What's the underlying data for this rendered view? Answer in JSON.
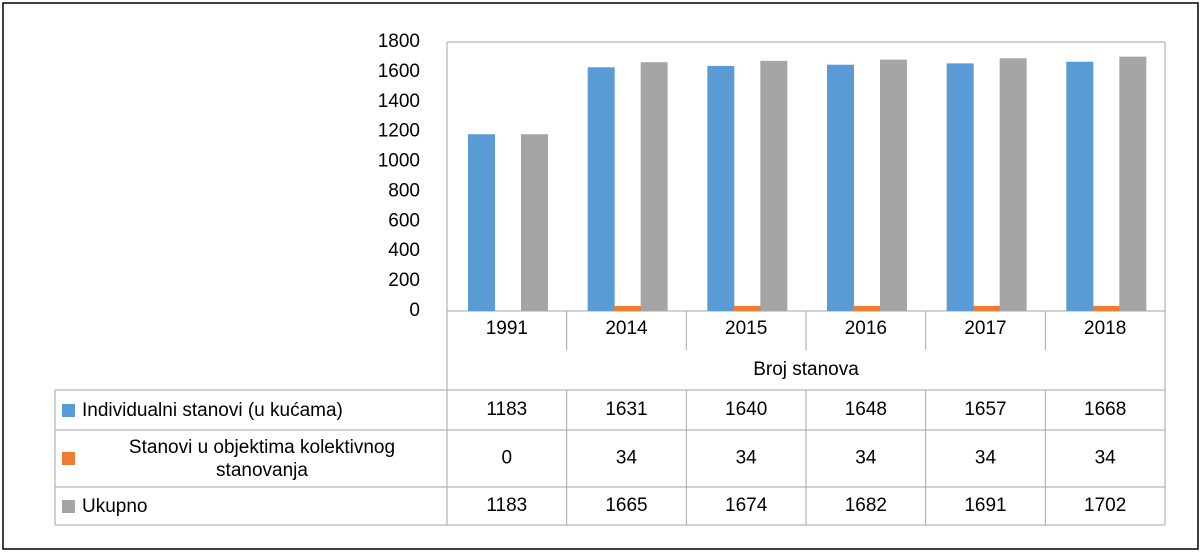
{
  "chart_data": {
    "type": "bar",
    "categories": [
      "1991",
      "2014",
      "2015",
      "2016",
      "2017",
      "2018"
    ],
    "x_axis_label": "Broj stanova",
    "series": [
      {
        "name": "Individualni stanovi (u kućama)",
        "color": "#5b9bd5",
        "values": [
          1183,
          1631,
          1640,
          1648,
          1657,
          1668
        ]
      },
      {
        "name": "Stanovi u objektima kolektivnog stanovanja",
        "color": "#ed7d31",
        "values": [
          0,
          34,
          34,
          34,
          34,
          34
        ]
      },
      {
        "name": "Ukupno",
        "color": "#a5a5a5",
        "values": [
          1183,
          1665,
          1674,
          1682,
          1691,
          1702
        ]
      }
    ],
    "ylim": [
      0,
      1800
    ],
    "yticks": [
      0,
      200,
      400,
      600,
      800,
      1000,
      1200,
      1400,
      1600,
      1800
    ],
    "grid": false
  }
}
